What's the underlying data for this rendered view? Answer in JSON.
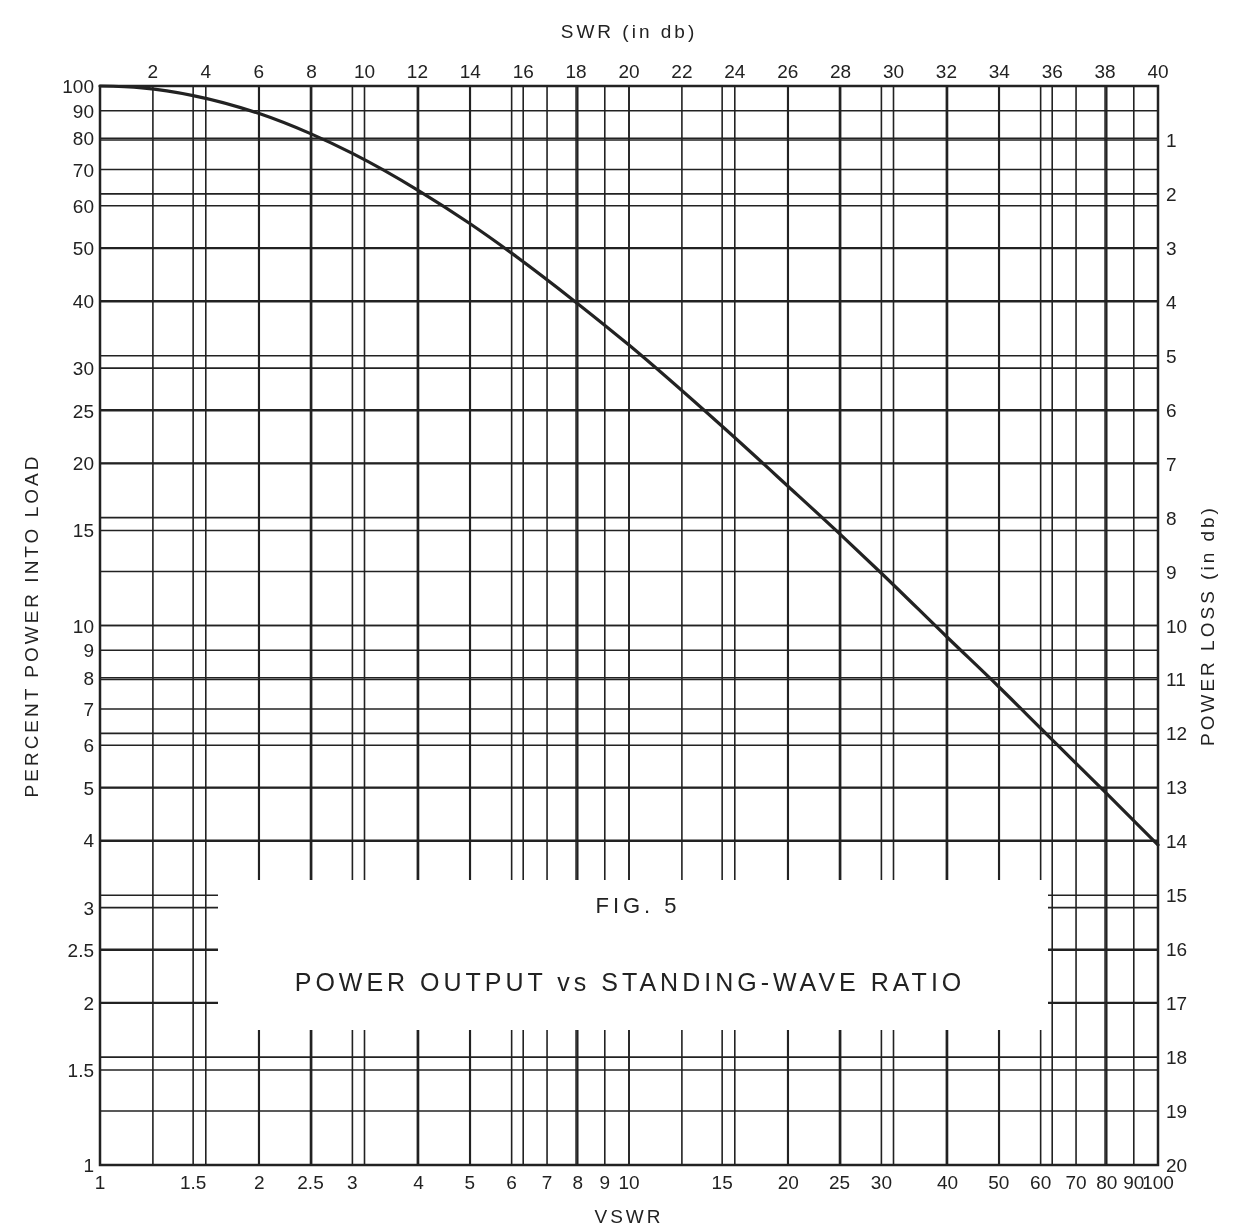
{
  "chart_data": {
    "type": "line",
    "title": "POWER OUTPUT vs STANDING-WAVE RATIO",
    "annotations": [
      "FIG. 5"
    ],
    "xlabel": "VSWR",
    "x2label": "SWR (in db)",
    "ylabel": "PERCENT POWER INTO LOAD",
    "y2label": "POWER LOSS (in db)",
    "x": [
      1,
      1.2,
      1.5,
      2,
      2.5,
      3,
      4,
      5,
      6,
      8,
      10,
      15,
      20,
      25,
      30,
      40,
      50,
      60,
      70,
      80,
      100
    ],
    "series": [
      {
        "color": "#222222",
        "values": [
          100,
          99.2,
          96,
          88.9,
          81.6,
          75,
          64,
          55.6,
          49,
          39.5,
          33.1,
          23.4,
          18.1,
          14.8,
          12.5,
          9.5,
          7.7,
          6.45,
          5.55,
          4.88,
          3.92
        ]
      }
    ],
    "log": "xy",
    "grid": true,
    "marker": "none",
    "line_style": "solid",
    "xlim": [
      1,
      100
    ],
    "xticks": [
      1,
      1.5,
      2,
      2.5,
      3,
      4,
      5,
      6,
      7,
      8,
      9,
      10,
      15,
      20,
      25,
      30,
      40,
      50,
      60,
      70,
      80,
      90,
      100
    ],
    "x2lim": [
      0,
      40
    ],
    "x2ticks": [
      2,
      4,
      6,
      8,
      10,
      12,
      14,
      16,
      18,
      20,
      22,
      24,
      26,
      28,
      30,
      32,
      34,
      36,
      38,
      40
    ],
    "ylim": [
      1,
      100
    ],
    "yticks": [
      1,
      1.5,
      2,
      2.5,
      3,
      4,
      5,
      6,
      7,
      8,
      9,
      10,
      15,
      20,
      25,
      30,
      40,
      50,
      60,
      70,
      80,
      90,
      100
    ],
    "y2lim": [
      20,
      0
    ],
    "y2ticks": [
      1,
      2,
      3,
      4,
      5,
      6,
      7,
      8,
      9,
      10,
      11,
      12,
      13,
      14,
      15,
      16,
      17,
      18,
      19,
      20
    ]
  }
}
